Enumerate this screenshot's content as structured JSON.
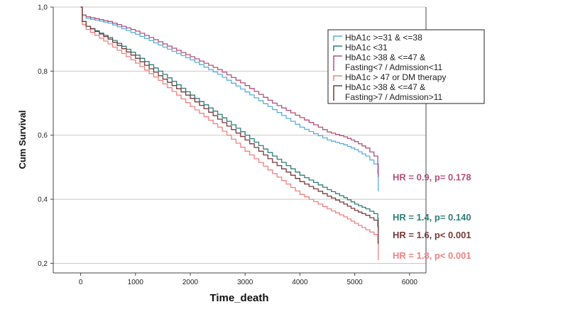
{
  "chart_data": {
    "type": "line",
    "title": "",
    "xlabel": "Time_death",
    "ylabel": "Cum Survival",
    "xlim": [
      -500,
      6300
    ],
    "ylim": [
      0.17,
      1.0
    ],
    "xticks": [
      0,
      1000,
      2000,
      3000,
      4000,
      5000,
      6000
    ],
    "xtick_labels": [
      "0",
      "1000",
      "2000",
      "3000",
      "4000",
      "5000",
      "6000"
    ],
    "yticks": [
      0.2,
      0.4,
      0.6,
      0.8,
      1.0
    ],
    "ytick_labels": [
      "0,2",
      "0,4",
      "0,6",
      "0,8",
      "1,0"
    ],
    "grid": "horizontal",
    "legend_position": "top-right",
    "series": [
      {
        "name": "HbA1c >=31 & <=38",
        "color": "#5aaedc",
        "x": [
          0,
          30,
          100,
          500,
          1000,
          1500,
          2000,
          2500,
          3000,
          3500,
          4000,
          4500,
          4800,
          5000,
          5200,
          5350,
          5420,
          5430
        ],
        "y": [
          1.0,
          0.975,
          0.965,
          0.95,
          0.915,
          0.875,
          0.835,
          0.79,
          0.735,
          0.68,
          0.625,
          0.585,
          0.57,
          0.555,
          0.535,
          0.51,
          0.48,
          0.425
        ]
      },
      {
        "name": "HbA1c <31",
        "color": "#2e7d77",
        "x": [
          0,
          30,
          100,
          500,
          1000,
          1500,
          2000,
          2500,
          3000,
          3500,
          4000,
          4500,
          4800,
          5000,
          5200,
          5350,
          5420,
          5430
        ],
        "y": [
          1.0,
          0.955,
          0.94,
          0.905,
          0.85,
          0.79,
          0.725,
          0.665,
          0.6,
          0.535,
          0.475,
          0.43,
          0.405,
          0.385,
          0.37,
          0.355,
          0.34,
          0.3
        ]
      },
      {
        "name": "HbA1c >38 & <=47 & Fasting<7 / Admission<11",
        "color": "#b0507a",
        "x": [
          0,
          30,
          100,
          500,
          1000,
          1500,
          2000,
          2500,
          3000,
          3500,
          4000,
          4500,
          4800,
          5000,
          5200,
          5350,
          5420,
          5430
        ],
        "y": [
          1.0,
          0.975,
          0.97,
          0.955,
          0.925,
          0.885,
          0.845,
          0.805,
          0.755,
          0.7,
          0.655,
          0.61,
          0.595,
          0.58,
          0.56,
          0.535,
          0.51,
          0.47
        ]
      },
      {
        "name": "HbA1c > 47 or DM therapy",
        "color": "#f08080",
        "x": [
          0,
          30,
          100,
          500,
          1000,
          1500,
          2000,
          2500,
          3000,
          3500,
          4000,
          4500,
          4800,
          5000,
          5200,
          5350,
          5420,
          5430
        ],
        "y": [
          1.0,
          0.945,
          0.93,
          0.885,
          0.825,
          0.76,
          0.69,
          0.625,
          0.55,
          0.48,
          0.415,
          0.37,
          0.345,
          0.325,
          0.305,
          0.29,
          0.265,
          0.21
        ]
      },
      {
        "name": "HbA1c >38 & <=47 & Fasting>7 / Admission>11",
        "color": "#7a3838",
        "x": [
          0,
          30,
          100,
          500,
          1000,
          1500,
          2000,
          2500,
          3000,
          3500,
          4000,
          4500,
          4800,
          5000,
          5200,
          5350,
          5420,
          5430
        ],
        "y": [
          1.0,
          0.955,
          0.94,
          0.9,
          0.84,
          0.775,
          0.715,
          0.65,
          0.585,
          0.515,
          0.455,
          0.41,
          0.385,
          0.365,
          0.35,
          0.335,
          0.315,
          0.26
        ]
      }
    ],
    "legend": [
      {
        "lines": [
          "HbA1c >=31 & <=38"
        ],
        "color": "#5aaedc"
      },
      {
        "lines": [
          "HbA1c <31"
        ],
        "color": "#2e7d77"
      },
      {
        "lines": [
          "HbA1c >38 & <=47 &",
          "Fasting<7 / Admission<11"
        ],
        "color": "#b0507a"
      },
      {
        "lines": [
          "HbA1c > 47 or DM therapy"
        ],
        "color": "#f08080"
      },
      {
        "lines": [
          "HbA1c >38 & <=47 &",
          "Fasting>7 / Admission>11"
        ],
        "color": "#7a3838"
      }
    ],
    "annotations": [
      {
        "text": "HR = 0.9, p= 0.178",
        "color": "#b0507a",
        "y": 0.47
      },
      {
        "text": "HR = 1.4, p= 0.140",
        "color": "#2e7d77",
        "y": 0.345
      },
      {
        "text": "HR = 1.6, p< 0.001",
        "color": "#7a3838",
        "y": 0.29
      },
      {
        "text": "HR = 1.8, p< 0.001",
        "color": "#f08080",
        "y": 0.225
      }
    ]
  }
}
